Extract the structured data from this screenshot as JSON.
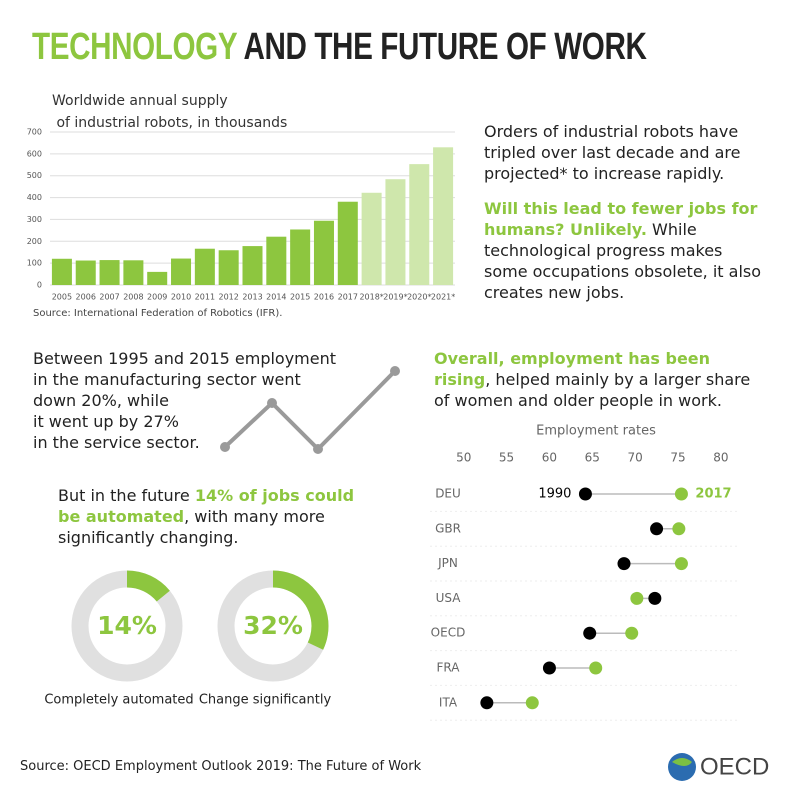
{
  "title": {
    "highlight": "TECHNOLOGY",
    "rest": "AND THE FUTURE OF WORK"
  },
  "robots_text": {
    "intro": "Orders of industrial robots have tripled over last decade and are projected* to increase rapidly.",
    "highlight": "Will this lead to fewer jobs for humans? Unlikely.",
    "rest": " While technological progress makes some occupations obsolete, it also creates new jobs."
  },
  "sector_text": [
    "Between 1995 and 2015 employment",
    "in the manufacturing sector went",
    "down 20%, while",
    "it went up by 27%",
    "in the service sector."
  ],
  "employment_text": {
    "highlight": "Overall, employment has been rising",
    "rest": ", helped mainly by a larger share of women and older people in work."
  },
  "automation_text": {
    "before": "But in the future ",
    "highlight": "14% of jobs could be automated",
    "after": ", with many more significantly changing."
  },
  "source": "Source: OECD Employment Outlook 2019: The Future of Work",
  "logo": "OECD",
  "chart_data": [
    {
      "type": "bar",
      "title": "Worldwide annual supply of industrial robots, in thousands",
      "source": "Source: International Federation of Robotics (IFR).",
      "categories": [
        "2005",
        "2006",
        "2007",
        "2008",
        "2009",
        "2010",
        "2011",
        "2012",
        "2013",
        "2014",
        "2015",
        "2016",
        "2017",
        "2018*",
        "2019*",
        "2020*",
        "2021*"
      ],
      "values": [
        120,
        112,
        114,
        113,
        60,
        121,
        166,
        159,
        178,
        221,
        254,
        294,
        381,
        422,
        484,
        553,
        630
      ],
      "colors": [
        "#8dc63f",
        "#8dc63f",
        "#8dc63f",
        "#8dc63f",
        "#8dc63f",
        "#8dc63f",
        "#8dc63f",
        "#8dc63f",
        "#8dc63f",
        "#8dc63f",
        "#8dc63f",
        "#8dc63f",
        "#8dc63f",
        "#cfe7ac",
        "#cfe7ac",
        "#cfe7ac",
        "#cfe7ac"
      ],
      "ylim": [
        0,
        700
      ],
      "yticks": [
        0,
        100,
        200,
        300,
        400,
        500,
        600,
        700
      ],
      "grid": true
    },
    {
      "type": "donut",
      "values": [
        14
      ],
      "value_labels": [
        "14%"
      ],
      "caption": "Completely automated",
      "color": "#8dc63f"
    },
    {
      "type": "donut",
      "values": [
        32
      ],
      "value_labels": [
        "32%"
      ],
      "caption": "Change significantly",
      "color": "#8dc63f"
    },
    {
      "type": "dot",
      "title": "Employment rates",
      "categories": [
        "DEU",
        "GBR",
        "JPN",
        "USA",
        "OECD",
        "FRA",
        "ITA"
      ],
      "series": [
        {
          "name": "1990",
          "color": "#000000",
          "values": [
            64.2,
            72.5,
            68.7,
            72.3,
            64.7,
            60.0,
            52.7
          ]
        },
        {
          "name": "2017",
          "color": "#8dc63f",
          "values": [
            75.4,
            75.1,
            75.4,
            70.2,
            69.6,
            65.4,
            58.0
          ]
        }
      ],
      "xlim": [
        47,
        82
      ],
      "xticks": [
        50,
        55,
        60,
        65,
        70,
        75,
        80
      ]
    }
  ]
}
